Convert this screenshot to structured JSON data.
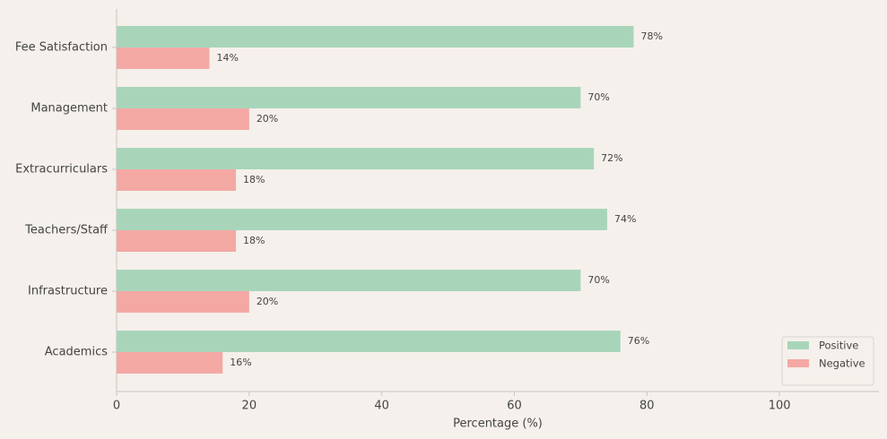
{
  "chart_data": {
    "type": "barh",
    "categories": [
      "Fee Satisfaction",
      "Management",
      "Extracurriculars",
      "Teachers/Staff",
      "Infrastructure",
      "Academics"
    ],
    "series": [
      {
        "name": "Positive",
        "color": "#a8d5ba",
        "values": [
          78,
          70,
          72,
          74,
          70,
          76
        ],
        "value_labels": [
          "78%",
          "70%",
          "72%",
          "74%",
          "70%",
          "76%"
        ]
      },
      {
        "name": "Negative",
        "color": "#f4a8a4",
        "values": [
          14,
          20,
          18,
          18,
          20,
          16
        ],
        "value_labels": [
          "14%",
          "20%",
          "18%",
          "18%",
          "20%",
          "16%"
        ]
      }
    ],
    "xlabel": "Percentage (%)",
    "xlim": [
      0,
      115
    ],
    "xticks": [
      0,
      20,
      40,
      60,
      80,
      100
    ],
    "legend": "lower right"
  }
}
